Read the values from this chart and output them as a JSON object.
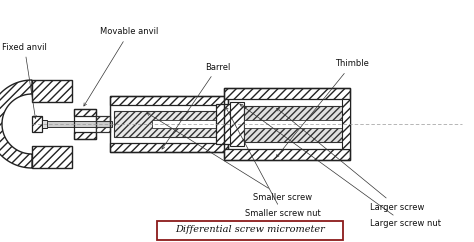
{
  "title": "Differential screw micrometer",
  "title_box_color": "#8b1a1a",
  "labels": {
    "fixed_anvil": "Fixed anvil",
    "movable_anvil": "Movable anvil",
    "smaller_screw_nut": "Smaller screw nut",
    "larger_screw_nut": "Larger screw nut",
    "smaller_screw": "Smaller screw",
    "larger_screw": "Larger screw",
    "barrel": "Barrel",
    "thimble": "Thimble"
  },
  "figsize": [
    4.74,
    2.42
  ],
  "dpi": 100
}
